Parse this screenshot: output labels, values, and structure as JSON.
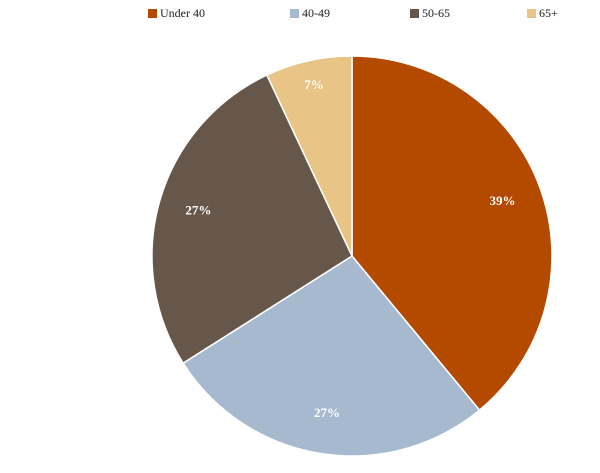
{
  "chart_data": {
    "type": "pie",
    "categories": [
      "Under 40",
      "40-49",
      "50-65",
      "65+"
    ],
    "values": [
      39,
      27,
      27,
      7
    ],
    "value_labels": [
      "39%",
      "27%",
      "27%",
      "7%"
    ],
    "colors": [
      "#b34a00",
      "#a7b9cf",
      "#67574a",
      "#e8c486"
    ],
    "legend": "top"
  }
}
